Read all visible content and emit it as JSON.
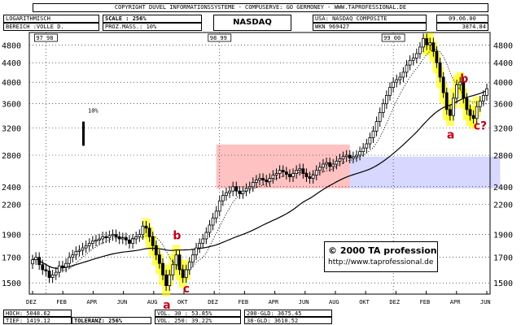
{
  "header": {
    "copyright": "COPYRIGHT  DUVEL INFORMATIONSSYSTEME - COMPUSERVE: GO GERMONEY - WWW.TAPROFESSIONAL.DE",
    "scale_mode": "LOGARITHMISCH",
    "range": "BEREICH :VOLLE D.",
    "scale": "SCALE : 256%",
    "prozmass": "PROZ.MASS.: 10%",
    "chart_name": "NASDAQ",
    "usa": "USA: NASDAQ COMPOSITE",
    "wkn": "WKN 969427",
    "date": "09.06.00",
    "last": "3874.84"
  },
  "footer": {
    "hoch": "HOCH: 5048.62",
    "tief": "TIEF: 1419.12",
    "toleranz": "TOLERANZ: 256%",
    "vol30": "VOL. 30 : 53.85%",
    "vol250": "VOL. 250: 39.22%",
    "gld200": "200-GLD: 3675.45",
    "gld38": "38-GLD: 3610.52"
  },
  "watermark": {
    "brand": "© 2000 TA professional",
    "url": "http://www.taprofessional.de"
  },
  "scale_marker": "10%",
  "chart_data": {
    "type": "candlestick",
    "title": "NASDAQ",
    "y_scale": "log",
    "ylim": [
      1420,
      5100
    ],
    "y_ticks": [
      1500,
      1700,
      1900,
      2200,
      2400,
      2800,
      3200,
      3600,
      4000,
      4400,
      4800
    ],
    "x_ticks": [
      "DEZ",
      "FEB",
      "APR",
      "JUN",
      "AUG",
      "OKT",
      "DEZ",
      "FEB",
      "APR",
      "JUN",
      "AUG",
      "OKT",
      "DEZ",
      "FEB",
      "APR",
      "JUN"
    ],
    "year_markers": [
      {
        "label": "97 98",
        "week": 4
      },
      {
        "label": "98 99",
        "week": 56
      },
      {
        "label": "99 00",
        "week": 108
      }
    ],
    "closes": [
      1680,
      1700,
      1640,
      1600,
      1590,
      1540,
      1560,
      1580,
      1630,
      1620,
      1650,
      1700,
      1720,
      1750,
      1760,
      1780,
      1800,
      1820,
      1840,
      1850,
      1860,
      1880,
      1870,
      1890,
      1900,
      1880,
      1860,
      1870,
      1850,
      1820,
      1860,
      1880,
      1900,
      1980,
      1960,
      1880,
      1800,
      1720,
      1650,
      1560,
      1480,
      1560,
      1640,
      1720,
      1600,
      1540,
      1600,
      1660,
      1720,
      1780,
      1820,
      1860,
      1920,
      1990,
      2060,
      2130,
      2240,
      2300,
      2330,
      2350,
      2400,
      2350,
      2320,
      2350,
      2380,
      2400,
      2450,
      2480,
      2500,
      2480,
      2460,
      2500,
      2540,
      2560,
      2600,
      2580,
      2550,
      2520,
      2560,
      2600,
      2620,
      2560,
      2520,
      2500,
      2540,
      2600,
      2640,
      2680,
      2700,
      2650,
      2680,
      2720,
      2750,
      2780,
      2800,
      2760,
      2780,
      2800,
      2850,
      2900,
      2960,
      3050,
      3150,
      3300,
      3450,
      3600,
      3750,
      3900,
      4000,
      4050,
      4100,
      4200,
      4350,
      4450,
      4500,
      4600,
      4750,
      4950,
      4800,
      4850,
      4650,
      4400,
      4100,
      3800,
      3500,
      3400,
      3700,
      3950,
      4000,
      3700,
      3500,
      3400,
      3350,
      3550,
      3650,
      3750,
      3874
    ],
    "series": [
      {
        "name": "38-GLD",
        "style": "dotted"
      },
      {
        "name": "200-GLD",
        "style": "solid"
      }
    ],
    "annotations": [
      {
        "label": "a",
        "week": 40
      },
      {
        "label": "b",
        "week": 43
      },
      {
        "label": "c",
        "week": 46
      },
      {
        "label": "a",
        "week": 125
      },
      {
        "label": "b",
        "week": 129
      },
      {
        "label": "c?",
        "week": 133
      }
    ],
    "zones": [
      {
        "color": "red",
        "from_week": 55,
        "to_week": 95,
        "y": [
          2380,
          2950
        ]
      },
      {
        "color": "blue",
        "from_week": 95,
        "to_week": 140,
        "y": [
          2380,
          2780
        ]
      }
    ]
  }
}
